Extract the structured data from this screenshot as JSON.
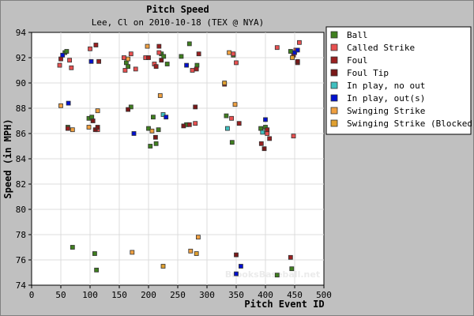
{
  "chart_data": {
    "type": "scatter",
    "title": "Pitch Speed",
    "subtitle": "Lee, Cl on 2010-10-18 (TEX @ NYA)",
    "xlabel": "Pitch Event ID",
    "ylabel": "Speed (in MPH)",
    "xlim": [
      0,
      500
    ],
    "ylim": [
      74,
      94
    ],
    "xticks": [
      0,
      50,
      100,
      150,
      200,
      250,
      300,
      350,
      400,
      450,
      500
    ],
    "yticks": [
      74,
      76,
      78,
      80,
      82,
      84,
      86,
      88,
      90,
      92,
      94
    ],
    "grid": true,
    "legend_position": "right",
    "watermark": "BrooksBaseball.net",
    "series": [
      {
        "name": "Ball",
        "color": "#3f7f1f",
        "points": [
          [
            57,
            92.4
          ],
          [
            60,
            92.5
          ],
          [
            62,
            86.5
          ],
          [
            70,
            77.0
          ],
          [
            98,
            87.2
          ],
          [
            103,
            87.3
          ],
          [
            108,
            76.5
          ],
          [
            111,
            75.2
          ],
          [
            162,
            91.6
          ],
          [
            165,
            91.3
          ],
          [
            170,
            88.1
          ],
          [
            200,
            86.4
          ],
          [
            203,
            85.0
          ],
          [
            208,
            87.3
          ],
          [
            213,
            85.2
          ],
          [
            217,
            86.3
          ],
          [
            222,
            92.3
          ],
          [
            226,
            92.1
          ],
          [
            232,
            91.5
          ],
          [
            256,
            92.1
          ],
          [
            265,
            86.7
          ],
          [
            270,
            93.1
          ],
          [
            283,
            91.4
          ],
          [
            333,
            87.4
          ],
          [
            343,
            85.3
          ],
          [
            345,
            92.2
          ],
          [
            392,
            86.4
          ],
          [
            400,
            86.5
          ],
          [
            420,
            74.8
          ],
          [
            443,
            92.5
          ],
          [
            445,
            75.3
          ]
        ]
      },
      {
        "name": "Called Strike",
        "color": "#e85050",
        "points": [
          [
            48,
            91.4
          ],
          [
            65,
            91.8
          ],
          [
            68,
            91.2
          ],
          [
            100,
            92.7
          ],
          [
            113,
            86.3
          ],
          [
            158,
            92.0
          ],
          [
            160,
            91.0
          ],
          [
            170,
            92.3
          ],
          [
            178,
            91.1
          ],
          [
            195,
            92.0
          ],
          [
            210,
            91.5
          ],
          [
            218,
            92.4
          ],
          [
            275,
            91.0
          ],
          [
            280,
            86.8
          ],
          [
            342,
            87.2
          ],
          [
            345,
            92.3
          ],
          [
            350,
            91.6
          ],
          [
            403,
            86.0
          ],
          [
            420,
            92.8
          ],
          [
            448,
            85.8
          ],
          [
            452,
            92.6
          ],
          [
            458,
            93.2
          ]
        ]
      },
      {
        "name": "Foul",
        "color": "#9a2020",
        "points": [
          [
            50,
            91.9
          ],
          [
            62,
            86.4
          ],
          [
            110,
            93.0
          ],
          [
            115,
            91.7
          ],
          [
            200,
            92.0
          ],
          [
            213,
            91.3
          ],
          [
            218,
            92.9
          ],
          [
            270,
            86.7
          ],
          [
            282,
            91.1
          ],
          [
            286,
            92.3
          ],
          [
            330,
            89.9
          ],
          [
            355,
            86.8
          ],
          [
            393,
            85.2
          ],
          [
            403,
            86.3
          ],
          [
            407,
            85.6
          ],
          [
            443,
            76.2
          ],
          [
            448,
            92.2
          ],
          [
            455,
            91.6
          ]
        ]
      },
      {
        "name": "Foul Tip",
        "color": "#7a1818",
        "points": [
          [
            105,
            87.0
          ],
          [
            109,
            86.3
          ],
          [
            113,
            86.5
          ],
          [
            165,
            87.9
          ],
          [
            212,
            85.7
          ],
          [
            222,
            91.8
          ],
          [
            260,
            86.6
          ],
          [
            280,
            88.1
          ],
          [
            350,
            76.4
          ],
          [
            398,
            84.8
          ],
          [
            455,
            91.7
          ]
        ]
      },
      {
        "name": "In play, no out",
        "color": "#40c0c0",
        "points": [
          [
            225,
            87.5
          ],
          [
            335,
            86.4
          ],
          [
            395,
            86.1
          ]
        ]
      },
      {
        "name": "In play, out(s)",
        "color": "#0010d0",
        "points": [
          [
            53,
            92.2
          ],
          [
            63,
            88.4
          ],
          [
            102,
            91.7
          ],
          [
            175,
            86.0
          ],
          [
            230,
            87.3
          ],
          [
            265,
            91.4
          ],
          [
            350,
            74.9
          ],
          [
            358,
            75.5
          ],
          [
            400,
            87.1
          ],
          [
            450,
            92.4
          ],
          [
            455,
            92.6
          ]
        ]
      },
      {
        "name": "Swinging Strike",
        "color": "#f0a040",
        "points": [
          [
            50,
            88.2
          ],
          [
            70,
            86.3
          ],
          [
            98,
            86.5
          ],
          [
            113,
            87.8
          ],
          [
            165,
            91.9
          ],
          [
            172,
            76.6
          ],
          [
            198,
            92.9
          ],
          [
            206,
            86.2
          ],
          [
            220,
            89.0
          ],
          [
            272,
            76.7
          ],
          [
            285,
            77.8
          ],
          [
            338,
            92.4
          ],
          [
            348,
            88.3
          ]
        ]
      },
      {
        "name": "Swinging Strike (Blocked)",
        "color": "#e0a030",
        "points": [
          [
            225,
            75.5
          ],
          [
            282,
            76.5
          ],
          [
            330,
            90.0
          ],
          [
            446,
            92.0
          ]
        ]
      }
    ]
  }
}
